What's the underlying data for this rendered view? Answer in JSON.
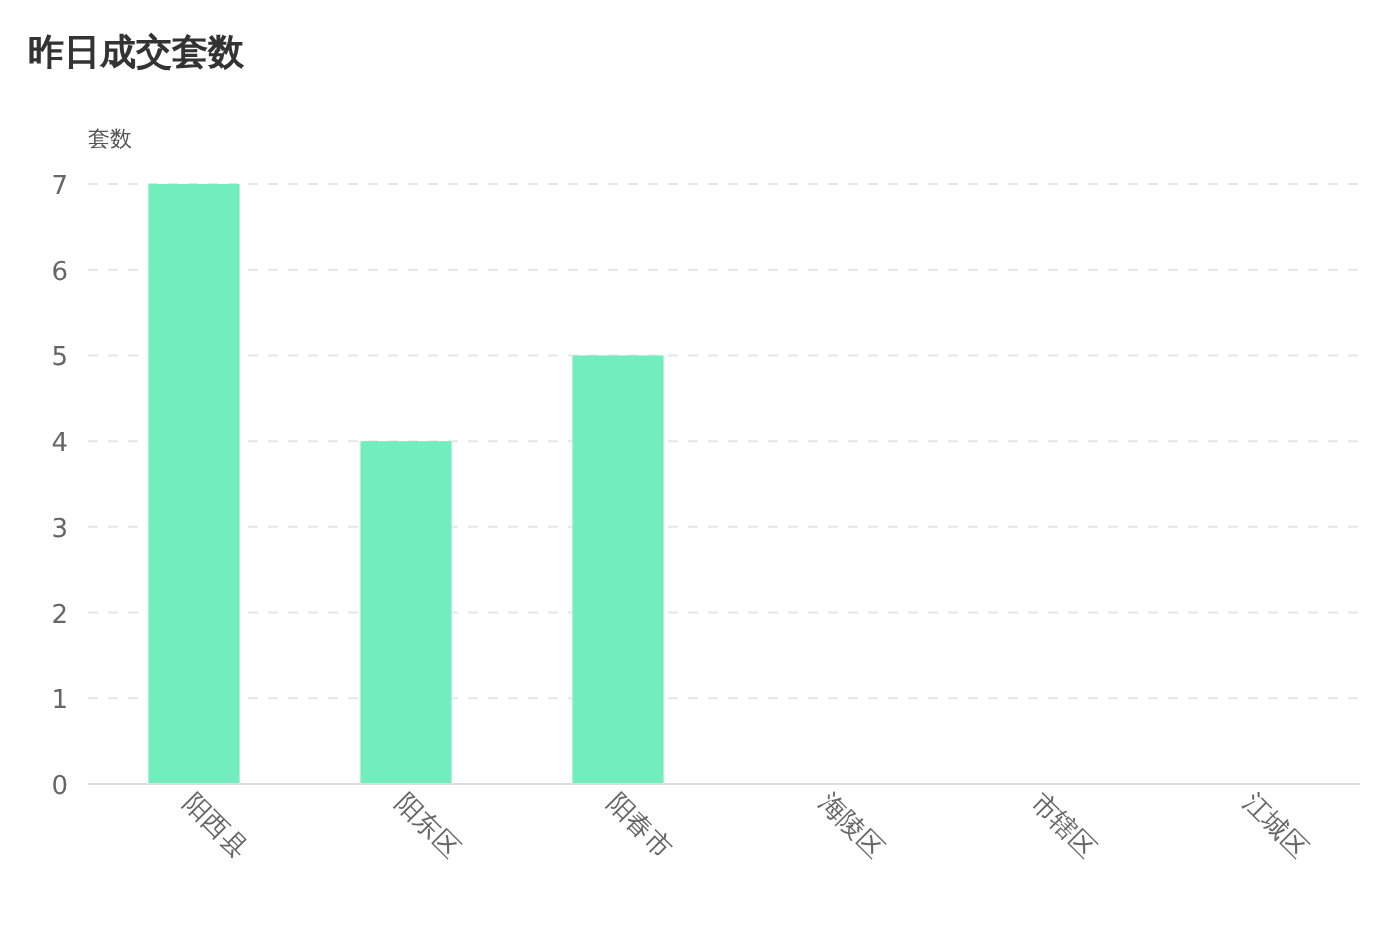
{
  "chart_data": {
    "type": "bar",
    "title": "昨日成交套数",
    "ylabel": "套数",
    "categories": [
      "阳西县",
      "阳东区",
      "阳春市",
      "海陵区",
      "市辖区",
      "江城区"
    ],
    "values": [
      7,
      4,
      5,
      0,
      0,
      0
    ],
    "color": "#72edbe",
    "ylim": [
      0,
      7
    ],
    "yticks": [
      0,
      1,
      2,
      3,
      4,
      5,
      6,
      7
    ],
    "grid": "y"
  }
}
